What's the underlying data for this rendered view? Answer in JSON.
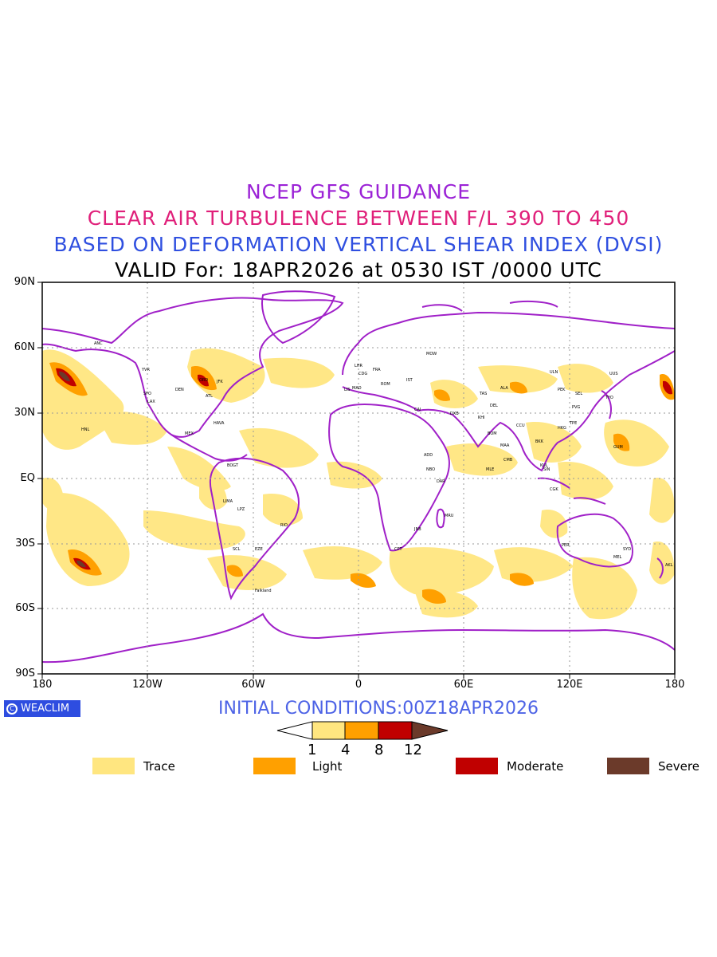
{
  "titles": {
    "line1": "NCEP GFS GUIDANCE",
    "line2": "CLEAR AIR TURBULENCE BETWEEN F/L 390 TO 450",
    "line3": "BASED ON DEFORMATION VERTICAL SHEAR INDEX (DVSI)",
    "line4": "VALID For: 18APR2026 at 0530 IST /0000 UTC"
  },
  "axes": {
    "lat_labels": [
      "90N",
      "60N",
      "30N",
      "EQ",
      "30S",
      "60S",
      "90S"
    ],
    "lon_labels": [
      "180",
      "120W",
      "60W",
      "0",
      "60E",
      "120E",
      "180"
    ]
  },
  "logo": {
    "text": "WEACLIM",
    "icon": "copyright-circle-icon"
  },
  "initial_conditions": "INITIAL CONDITIONS:00Z18APR2026",
  "colorbar": {
    "ticks": [
      "1",
      "4",
      "8",
      "12"
    ],
    "colors": [
      "#ffe680",
      "#ffa000",
      "#c00000",
      "#6b3a2a"
    ]
  },
  "legend": [
    {
      "label": "Trace",
      "color": "#ffe680"
    },
    {
      "label": "Light",
      "color": "#ffa000"
    },
    {
      "label": "Moderate",
      "color": "#c00000"
    },
    {
      "label": "Severe",
      "color": "#6b3a2a"
    }
  ],
  "colors": {
    "coastline": "#a020c8",
    "grid": "#9a9a9a"
  },
  "stations": [
    "ANC",
    "YVR",
    "SFO",
    "LAX",
    "DEN",
    "ORD",
    "JFK",
    "ATL",
    "MEX",
    "HAVA",
    "BOGT",
    "LIMA",
    "LPZ",
    "RIO",
    "SCL",
    "EZE",
    "Falkland",
    "LHR",
    "CDG",
    "FRA",
    "MAD",
    "LIS",
    "CAI",
    "ROM",
    "IST",
    "MOW",
    "DXB",
    "KHI",
    "DEL",
    "BOM",
    "CCU",
    "MAA",
    "PEK",
    "PVG",
    "HKG",
    "TPE",
    "SEL",
    "TYO",
    "BKK",
    "SIN",
    "KUL",
    "CGK",
    "SYD",
    "MEL",
    "PER",
    "AKL",
    "NBO",
    "JNB",
    "CPT",
    "ADD",
    "DAR",
    "MRU",
    "MLE",
    "CMB",
    "HNL",
    "GUM",
    "ULN",
    "ALA",
    "TAS",
    "UUS"
  ]
}
